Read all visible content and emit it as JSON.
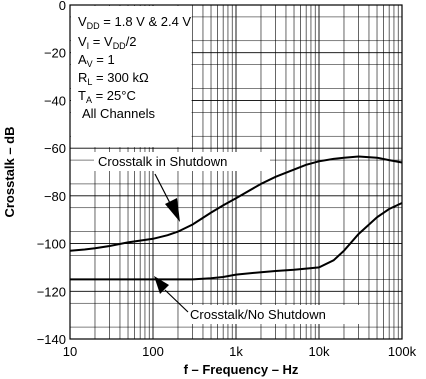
{
  "chart_data": {
    "type": "line",
    "title": "",
    "xlabel": "f – Frequency – Hz",
    "ylabel": "Crosstalk – dB",
    "xscale": "log",
    "xlim": [
      10,
      100000
    ],
    "ylim": [
      -140,
      0
    ],
    "grid": true,
    "x_ticks": [
      {
        "value": 10,
        "label": "10"
      },
      {
        "value": 100,
        "label": "100"
      },
      {
        "value": 1000,
        "label": "1k"
      },
      {
        "value": 10000,
        "label": "10k"
      },
      {
        "value": 100000,
        "label": "100k"
      }
    ],
    "y_ticks": [
      {
        "value": 0,
        "label": "0"
      },
      {
        "value": -20,
        "label": "−20"
      },
      {
        "value": -40,
        "label": "−40"
      },
      {
        "value": -60,
        "label": "−60"
      },
      {
        "value": -80,
        "label": "−80"
      },
      {
        "value": -100,
        "label": "−100"
      },
      {
        "value": -120,
        "label": "−120"
      },
      {
        "value": -140,
        "label": "−140"
      }
    ],
    "conditions": {
      "vdd_main": "V",
      "vdd_sub": "DD",
      "vdd_rest": " = 1.8 V & 2.4 V",
      "vi_main": "V",
      "vi_sub": "I",
      "vi_mid": " = V",
      "vi_sub2": "DD",
      "vi_rest": "/2",
      "av_main": "A",
      "av_sub": "V",
      "av_rest": " = 1",
      "rl_main": "R",
      "rl_sub": "L",
      "rl_rest": " = 300 kΩ",
      "ta_main": "T",
      "ta_sub": "A",
      "ta_rest": " = 25°C",
      "channels": "All Channels"
    },
    "series": [
      {
        "name": "Crosstalk in Shutdown",
        "points": [
          [
            10,
            -103
          ],
          [
            15,
            -102.5
          ],
          [
            20,
            -102
          ],
          [
            30,
            -101
          ],
          [
            50,
            -99.5
          ],
          [
            100,
            -98
          ],
          [
            150,
            -96.5
          ],
          [
            200,
            -95
          ],
          [
            300,
            -92
          ],
          [
            500,
            -87
          ],
          [
            700,
            -84
          ],
          [
            1000,
            -81
          ],
          [
            2000,
            -75
          ],
          [
            3000,
            -72
          ],
          [
            5000,
            -69
          ],
          [
            7000,
            -67
          ],
          [
            10000,
            -65.5
          ],
          [
            15000,
            -64.5
          ],
          [
            20000,
            -64
          ],
          [
            30000,
            -63.5
          ],
          [
            50000,
            -64
          ],
          [
            70000,
            -65
          ],
          [
            100000,
            -66
          ]
        ]
      },
      {
        "name": "Crosstalk/No Shutdown",
        "points": [
          [
            10,
            -115
          ],
          [
            20,
            -115
          ],
          [
            50,
            -115
          ],
          [
            100,
            -115
          ],
          [
            200,
            -115
          ],
          [
            300,
            -115
          ],
          [
            500,
            -114.5
          ],
          [
            700,
            -114
          ],
          [
            1000,
            -113
          ],
          [
            2000,
            -112
          ],
          [
            3000,
            -111.5
          ],
          [
            5000,
            -111
          ],
          [
            7000,
            -110.5
          ],
          [
            10000,
            -110
          ],
          [
            15000,
            -107
          ],
          [
            20000,
            -103
          ],
          [
            30000,
            -96
          ],
          [
            50000,
            -89
          ],
          [
            70000,
            -85.5
          ],
          [
            100000,
            -83
          ]
        ]
      }
    ]
  }
}
